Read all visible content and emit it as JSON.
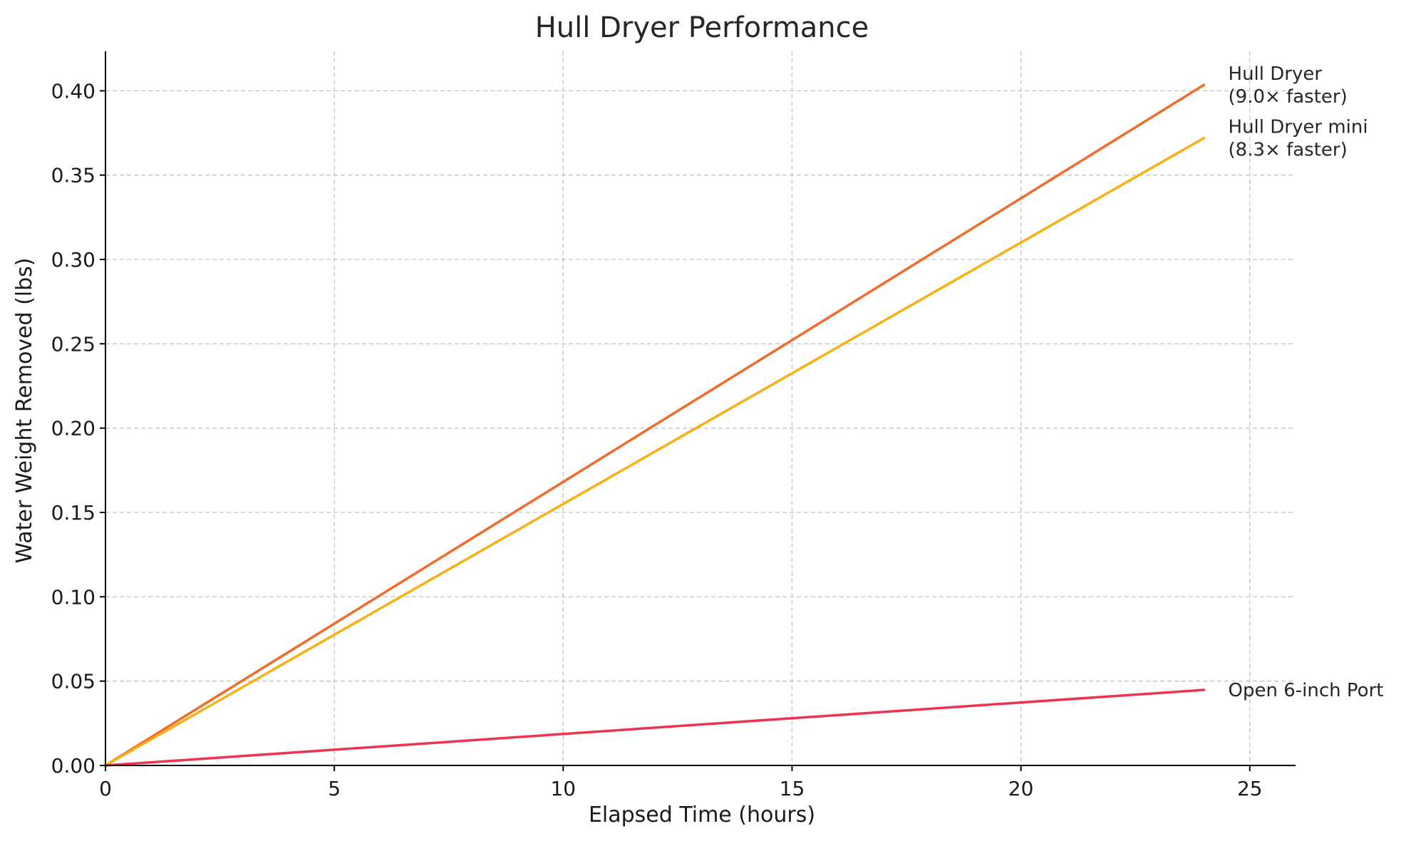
{
  "chart_data": {
    "type": "line",
    "title": "Hull Dryer Performance",
    "xlabel": "Elapsed Time (hours)",
    "ylabel": "Water Weight Removed (lbs)",
    "xlim": [
      0,
      26
    ],
    "ylim": [
      0,
      0.4234
    ],
    "x_ticks": [
      0,
      5,
      10,
      15,
      20,
      25
    ],
    "x_tick_labels": [
      "0",
      "5",
      "10",
      "15",
      "20",
      "25"
    ],
    "y_ticks": [
      0,
      0.05,
      0.1,
      0.15,
      0.2,
      0.25,
      0.3,
      0.35,
      0.4
    ],
    "y_tick_labels": [
      "0.00",
      "0.05",
      "0.10",
      "0.15",
      "0.20",
      "0.25",
      "0.30",
      "0.35",
      "0.40"
    ],
    "grid": true,
    "legend": "none",
    "series": [
      {
        "key": "hull_dryer",
        "label_lines": [
          "Hull Dryer",
          "(9.0× faster)"
        ],
        "color": "#f06c2b",
        "x": [
          0,
          24
        ],
        "y": [
          0,
          0.4035
        ]
      },
      {
        "key": "hull_dryer_mini",
        "label_lines": [
          "Hull Dryer mini",
          "(8.3× faster)"
        ],
        "color": "#f5b116",
        "x": [
          0,
          24
        ],
        "y": [
          0,
          0.372
        ]
      },
      {
        "key": "open_port",
        "label_lines": [
          "Open 6-inch Port"
        ],
        "color": "#ec3452",
        "x": [
          0,
          24
        ],
        "y": [
          0,
          0.0448
        ]
      }
    ]
  }
}
